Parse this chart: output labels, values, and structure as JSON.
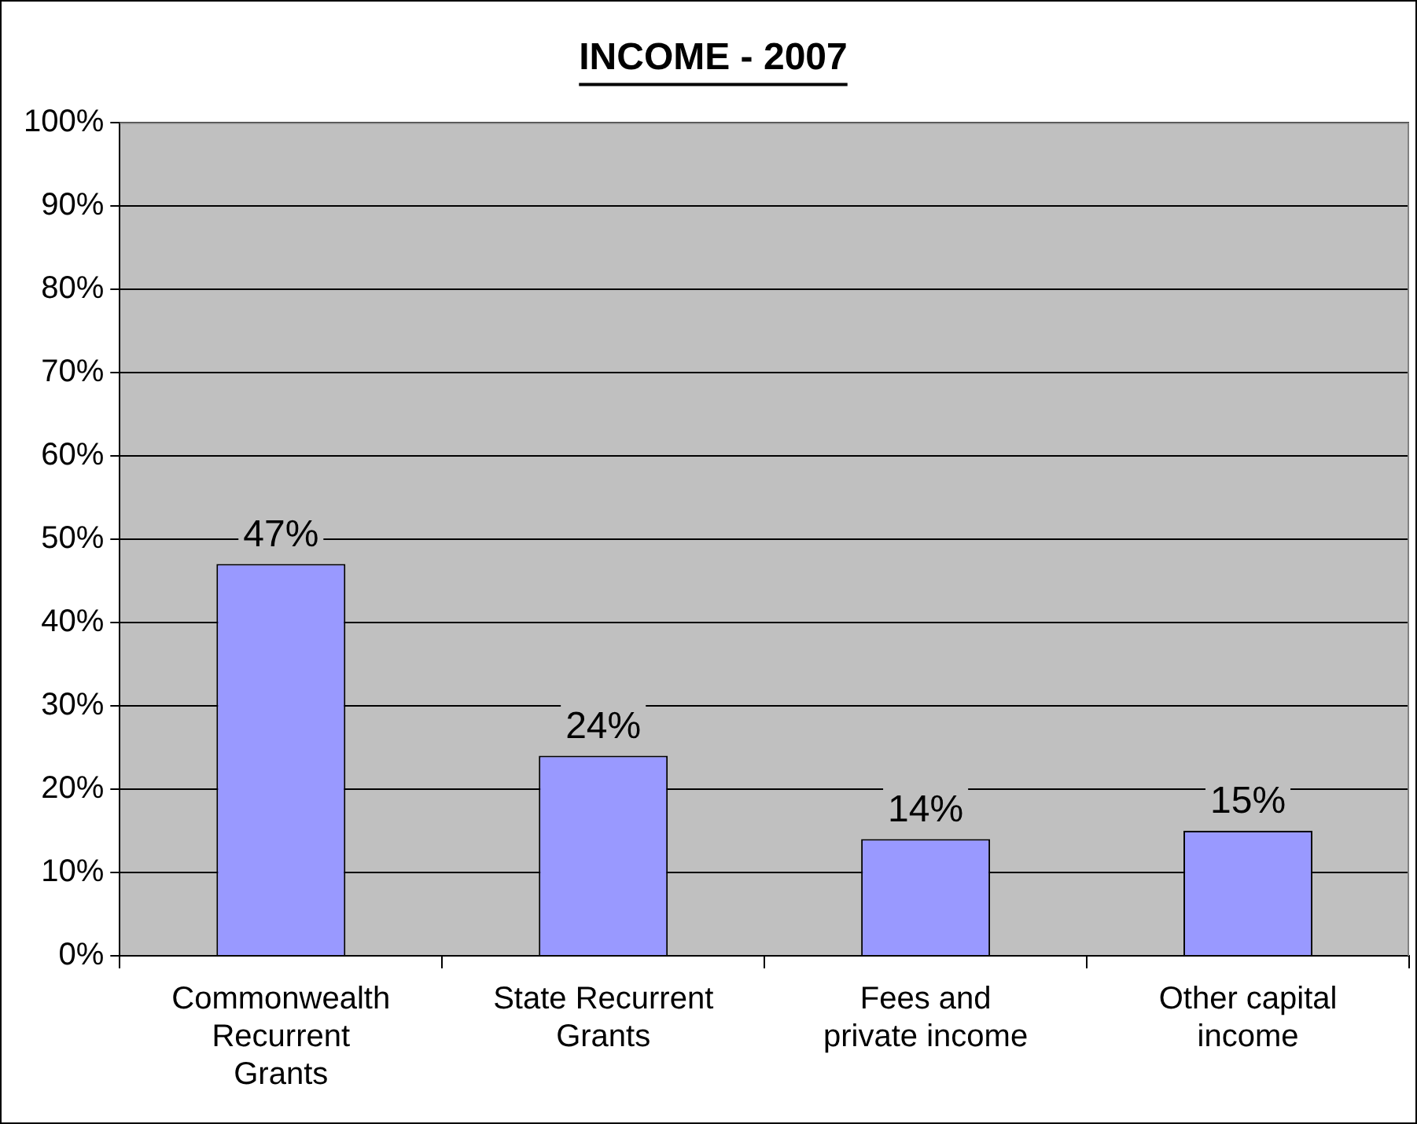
{
  "chart_data": {
    "type": "bar",
    "title": "INCOME - 2007",
    "categories": [
      "Commonwealth Recurrent Grants",
      "State Recurrent Grants",
      "Fees and private income",
      "Other capital income"
    ],
    "values": [
      47,
      24,
      14,
      15
    ],
    "color": "#9999ff",
    "ylim": [
      0,
      100
    ],
    "yticks": [
      {
        "value": 0,
        "label": "0%"
      },
      {
        "value": 10,
        "label": "10%"
      },
      {
        "value": 20,
        "label": "20%"
      },
      {
        "value": 30,
        "label": "30%"
      },
      {
        "value": 40,
        "label": "40%"
      },
      {
        "value": 50,
        "label": "50%"
      },
      {
        "value": 60,
        "label": "60%"
      },
      {
        "value": 70,
        "label": "70%"
      },
      {
        "value": 80,
        "label": "80%"
      },
      {
        "value": 90,
        "label": "90%"
      },
      {
        "value": 100,
        "label": "100%"
      }
    ],
    "value_labels": [
      "47%",
      "24%",
      "14%",
      "15%"
    ],
    "grid": "y",
    "legend": false
  }
}
